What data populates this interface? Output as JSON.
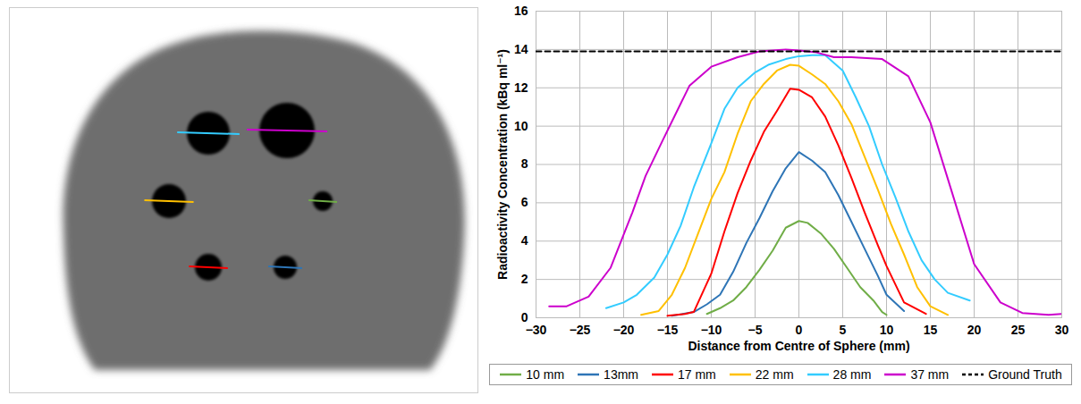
{
  "chart_data": {
    "type": "line",
    "xlabel": "Distance from Centre of Sphere (mm)",
    "ylabel": "Radioactivity Concentration (kBq ml⁻¹)",
    "xlim": [
      -30,
      30
    ],
    "xticks": [
      -30,
      -25,
      -20,
      -15,
      -10,
      -5,
      0,
      5,
      10,
      15,
      20,
      25,
      30
    ],
    "ylim": [
      0,
      16
    ],
    "yticks": [
      0,
      2,
      4,
      6,
      8,
      10,
      12,
      14,
      16
    ],
    "grid": true,
    "legend": "bottom",
    "series": [
      {
        "name": "10 mm",
        "color": "#70ad47",
        "line_style": "solid",
        "x": [
          -10.5,
          -9,
          -7.5,
          -6,
          -4.5,
          -3,
          -1.5,
          0,
          1,
          2.5,
          4,
          5.5,
          7,
          8.5,
          9.5,
          10
        ],
        "values": [
          0.2,
          0.5,
          0.9,
          1.6,
          2.5,
          3.5,
          4.7,
          5.05,
          4.95,
          4.4,
          3.6,
          2.6,
          1.6,
          0.9,
          0.3,
          0.15
        ]
      },
      {
        "name": "13mm",
        "color": "#2e75b6",
        "line_style": "solid",
        "x": [
          -14.5,
          -12,
          -10.5,
          -9,
          -7.5,
          -6,
          -4.5,
          -3,
          -1.5,
          0,
          1.5,
          3,
          4.5,
          6,
          7.5,
          9,
          10,
          12
        ],
        "values": [
          0.1,
          0.3,
          0.7,
          1.2,
          2.4,
          3.9,
          5.2,
          6.6,
          7.8,
          8.65,
          8.2,
          7.6,
          6.4,
          5.0,
          3.6,
          2.2,
          1.2,
          0.35
        ]
      },
      {
        "name": "17 mm",
        "color": "#ff0000",
        "line_style": "solid",
        "x": [
          -15,
          -13,
          -12,
          -10,
          -8.5,
          -7,
          -5.5,
          -4,
          -2.5,
          -1,
          0,
          1.5,
          3,
          4.5,
          6,
          7.5,
          9,
          10,
          12,
          14.5
        ],
        "values": [
          0.1,
          0.2,
          0.3,
          2.3,
          4.5,
          6.5,
          8.2,
          9.7,
          10.8,
          11.95,
          11.9,
          11.5,
          10.5,
          9.0,
          7.3,
          5.5,
          3.8,
          2.7,
          0.8,
          0.2
        ]
      },
      {
        "name": "22 mm",
        "color": "#ffc000",
        "line_style": "solid",
        "x": [
          -18,
          -16,
          -14.5,
          -13,
          -11.5,
          -10,
          -8.5,
          -7,
          -5.5,
          -4,
          -2.5,
          -1,
          0,
          1.5,
          3,
          4.5,
          6,
          7.5,
          9,
          10.5,
          12,
          13.5,
          15,
          17
        ],
        "values": [
          0.15,
          0.35,
          1.2,
          2.6,
          4.4,
          6.2,
          7.6,
          9.6,
          11.3,
          12.2,
          12.9,
          13.2,
          13.15,
          12.7,
          12.2,
          11.3,
          10.1,
          8.4,
          6.7,
          4.9,
          3.3,
          1.6,
          0.6,
          0.15
        ]
      },
      {
        "name": "28 mm",
        "color": "#33ccff",
        "line_style": "solid",
        "x": [
          -22,
          -20,
          -18.5,
          -16.5,
          -15,
          -13.5,
          -12,
          -10,
          -8.5,
          -7,
          -5,
          -3.5,
          -1.5,
          0,
          1.5,
          3,
          5,
          6.5,
          8,
          9.5,
          11,
          12.5,
          14,
          15.5,
          17,
          19.5
        ],
        "values": [
          0.5,
          0.8,
          1.2,
          2.1,
          3.3,
          4.8,
          6.8,
          9.1,
          10.9,
          12.0,
          12.8,
          13.2,
          13.5,
          13.65,
          13.7,
          13.7,
          12.9,
          11.5,
          10.0,
          8.0,
          6.3,
          4.5,
          3.0,
          2.0,
          1.3,
          0.9
        ]
      },
      {
        "name": "37 mm",
        "color": "#cc00cc",
        "line_style": "solid",
        "x": [
          -28.5,
          -26.5,
          -24,
          -21.5,
          -19,
          -17.5,
          -15.5,
          -12.5,
          -10,
          -7,
          -4.5,
          -1.5,
          0,
          2,
          4,
          6,
          9.5,
          12.5,
          15,
          17.5,
          20,
          23,
          25.5,
          28.5,
          30
        ],
        "values": [
          0.6,
          0.6,
          1.1,
          2.6,
          5.5,
          7.4,
          9.3,
          12.1,
          13.1,
          13.6,
          13.9,
          14.0,
          13.95,
          13.85,
          13.6,
          13.6,
          13.5,
          12.6,
          10.2,
          6.5,
          2.8,
          0.8,
          0.25,
          0.15,
          0.2
        ]
      },
      {
        "name": "Ground Truth",
        "color": "#000000",
        "line_style": "dashed",
        "x": [
          -30,
          30
        ],
        "values": [
          13.9,
          13.9
        ]
      }
    ]
  }
}
